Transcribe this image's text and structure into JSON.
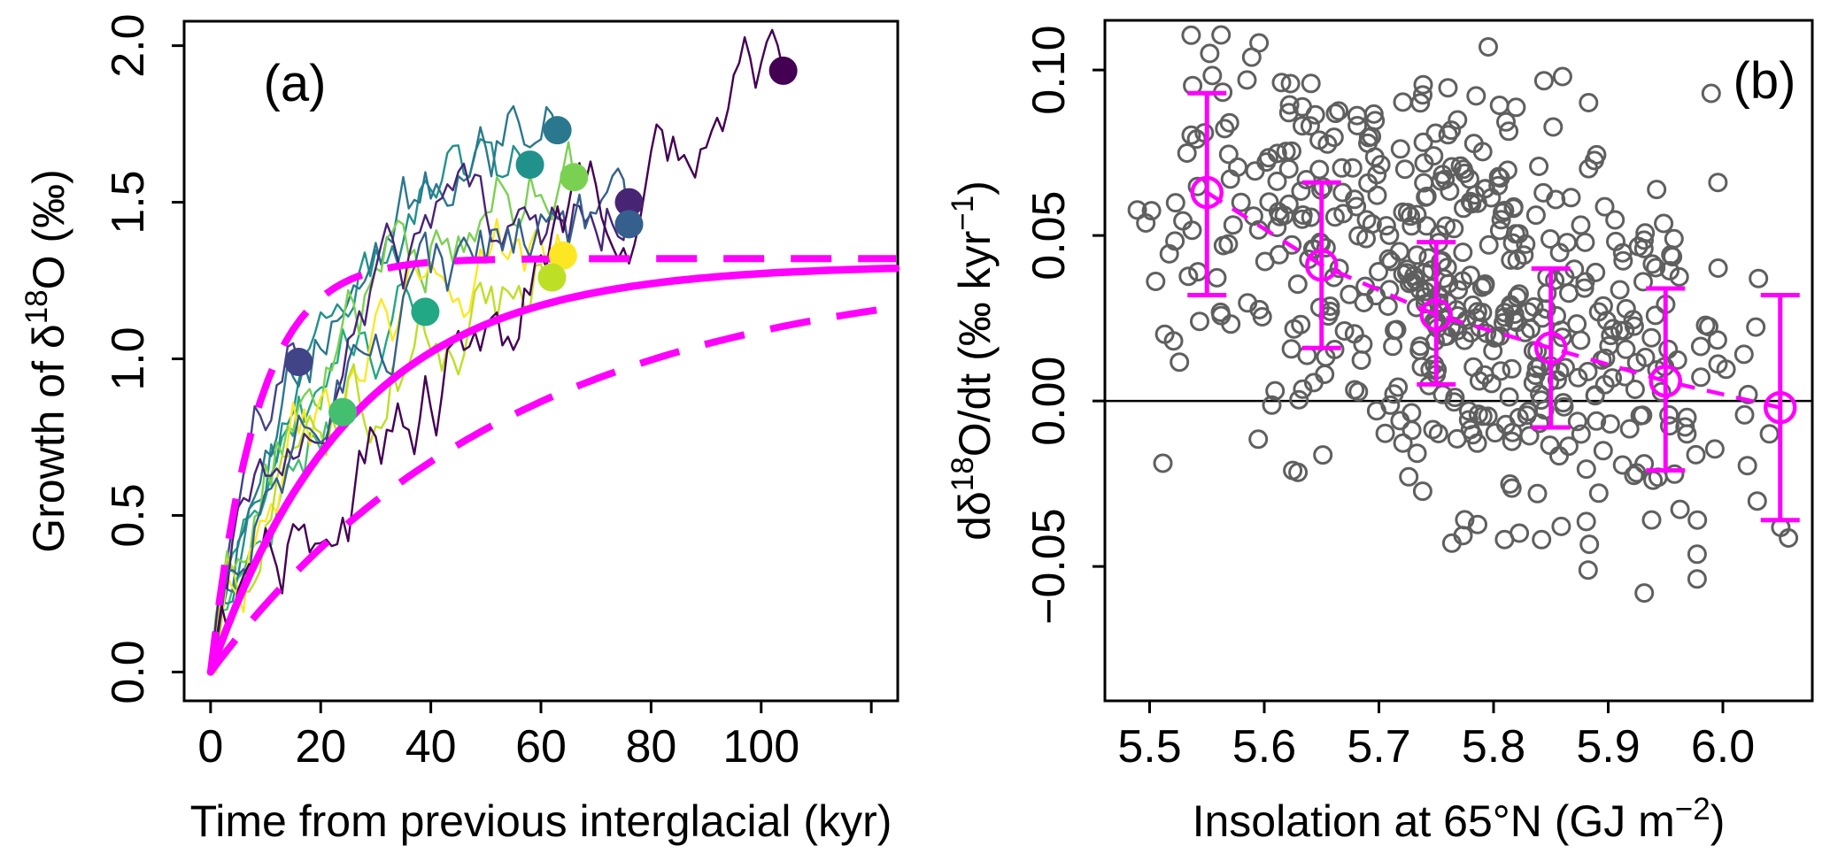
{
  "figure_background": "#ffffff",
  "accent_color": "#ff00ff",
  "scatter_color": "#5f5f5f",
  "axis_color": "#000000",
  "chart_data": [
    {
      "type": "line",
      "panel_label": "(a)",
      "xlabel_segments": [
        {
          "t": "Time from previous interglacial (kyr)"
        }
      ],
      "ylabel_segments": [
        {
          "t": "Growth of δ"
        },
        {
          "t": "18",
          "sup": true
        },
        {
          "t": "O (‰)"
        }
      ],
      "xlim": [
        -4.8,
        124.8
      ],
      "ylim": [
        -0.092,
        2.078
      ],
      "xticks": {
        "values": [
          0,
          20,
          40,
          60,
          80,
          100,
          120
        ],
        "labels": [
          "0",
          "20",
          "40",
          "60",
          "80",
          "100",
          ""
        ]
      },
      "yticks": {
        "values": [
          0,
          0.5,
          1,
          1.5,
          2
        ],
        "labels": [
          "0.0",
          "0.5",
          "1.0",
          "1.5",
          "2.0"
        ]
      },
      "grid": false,
      "model_curves": {
        "color": "#ff00ff",
        "mean_solid": {
          "asymptote": 1.3,
          "tau": 26
        },
        "upper_dashed": {
          "asymptote": 1.32,
          "tau": 8.5
        },
        "lower_dashed": {
          "asymptote": 1.3,
          "tau": 55
        }
      },
      "trajectories": [
        {
          "end_t": 16,
          "end_value": 0.99,
          "tau": 12,
          "noise": 0.1,
          "seed": 101,
          "color": "#414487"
        },
        {
          "end_t": 24,
          "end_value": 0.83,
          "tau": 14,
          "noise": 0.1,
          "seed": 202,
          "color": "#44bf70"
        },
        {
          "end_t": 39,
          "end_value": 1.15,
          "tau": 16,
          "noise": 0.1,
          "seed": 303,
          "color": "#22a884"
        },
        {
          "end_t": 58,
          "end_value": 1.62,
          "tau": 24,
          "noise": 0.1,
          "seed": 404,
          "color": "#21918c"
        },
        {
          "end_t": 63,
          "end_value": 1.73,
          "tau": 24,
          "noise": 0.1,
          "seed": 505,
          "color": "#2a788e"
        },
        {
          "end_t": 66,
          "end_value": 1.58,
          "tau": 26,
          "noise": 0.11,
          "seed": 606,
          "color": "#7ad151"
        },
        {
          "end_t": 64,
          "end_value": 1.33,
          "tau": 26,
          "noise": 0.12,
          "seed": 707,
          "color": "#fde725"
        },
        {
          "end_t": 62,
          "end_value": 1.26,
          "tau": 26,
          "noise": 0.12,
          "seed": 808,
          "color": "#bddf26"
        },
        {
          "end_t": 76,
          "end_value": 1.5,
          "tau": 22,
          "noise": 0.1,
          "seed": 909,
          "color": "#482475"
        },
        {
          "end_t": 76,
          "end_value": 1.43,
          "tau": 24,
          "noise": 0.1,
          "seed": 1010,
          "color": "#355f8d"
        },
        {
          "end_t": 104,
          "end_value": 1.92,
          "tau": 200,
          "noise": 0.12,
          "seed": 1111,
          "color": "#440154"
        }
      ]
    },
    {
      "type": "scatter",
      "panel_label": "(b)",
      "xlabel_segments": [
        {
          "t": "Insolation at 65°N (GJ m"
        },
        {
          "t": "−2",
          "sup": true
        },
        {
          "t": ")"
        }
      ],
      "ylabel_segments": [
        {
          "t": "dδ"
        },
        {
          "t": "18",
          "sup": true
        },
        {
          "t": "O/dt (‰ kyr"
        },
        {
          "t": "−1",
          "sup": true
        },
        {
          "t": ")"
        }
      ],
      "xlim": [
        5.461,
        6.078
      ],
      "ylim": [
        -0.0906,
        0.115
      ],
      "xticks": {
        "values": [
          5.5,
          5.6,
          5.7,
          5.8,
          5.9,
          6.0
        ],
        "labels": [
          "5.5",
          "5.6",
          "5.7",
          "5.8",
          "5.9",
          "6.0"
        ]
      },
      "yticks": {
        "values": [
          -0.05,
          0,
          0.05,
          0.1
        ],
        "labels": [
          "−0.05",
          "0.00",
          "0.05",
          "0.10"
        ]
      },
      "grid": false,
      "zero_line_y": 0,
      "binned_means": {
        "x": [
          5.55,
          5.65,
          5.75,
          5.85,
          5.95,
          6.05
        ],
        "mean": [
          0.063,
          0.041,
          0.026,
          0.016,
          0.006,
          -0.002
        ],
        "upper": [
          0.093,
          0.066,
          0.048,
          0.04,
          0.034,
          0.032
        ],
        "lower": [
          0.032,
          0.016,
          0.005,
          -0.008,
          -0.021,
          -0.036
        ]
      },
      "scatter_cloud": {
        "n": 520,
        "x_min": 5.47,
        "x_max": 6.07,
        "trend_ref_x": 5.55,
        "trend_ref_value": 0.063,
        "trend_slope": -0.135,
        "sd": 0.031,
        "seed": 42
      }
    }
  ]
}
